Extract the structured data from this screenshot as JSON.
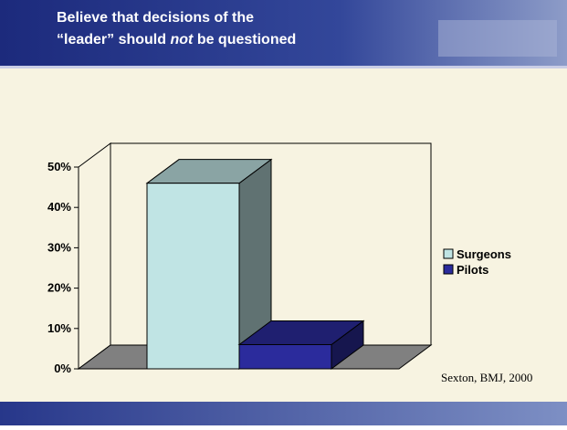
{
  "header": {
    "title_line1": "Believe that decisions of the",
    "title_line2_before": "“leader” should",
    "title_line2_em": "not",
    "title_line2_after": "be questioned"
  },
  "chart_data": {
    "type": "bar3d",
    "series": [
      {
        "name": "Surgeons",
        "color": "#c0e4e4",
        "values": [
          46
        ]
      },
      {
        "name": "Pilots",
        "color": "#2b2b9c",
        "values": [
          6
        ]
      }
    ],
    "ylim": [
      0,
      50
    ],
    "yticks": [
      {
        "value": 0,
        "label": "0%"
      },
      {
        "value": 10,
        "label": "10%"
      },
      {
        "value": 20,
        "label": "20%"
      },
      {
        "value": 30,
        "label": "30%"
      },
      {
        "value": 40,
        "label": "40%"
      },
      {
        "value": 50,
        "label": "50%"
      }
    ],
    "legend": "right"
  },
  "source": "Sexton, BMJ, 2000"
}
